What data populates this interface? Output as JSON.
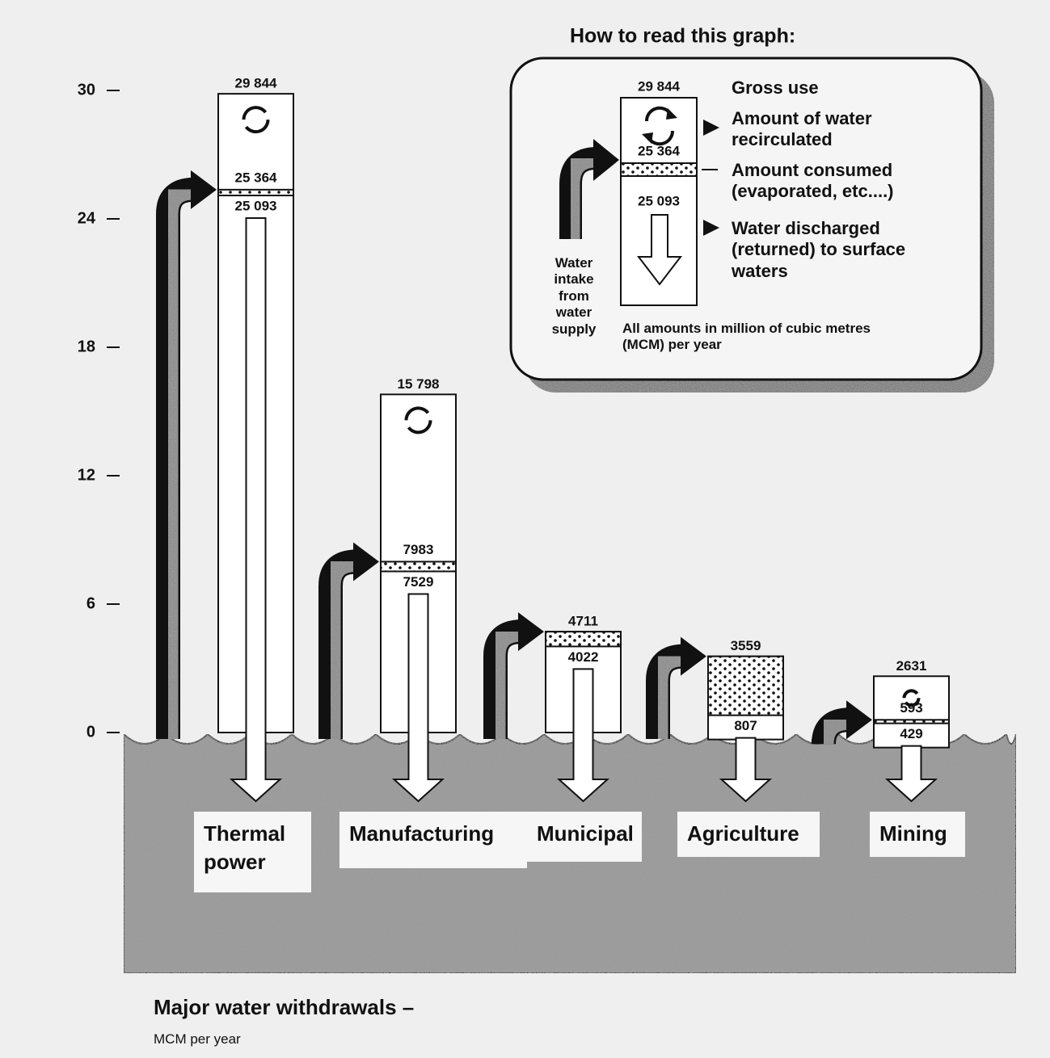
{
  "chart_data": {
    "type": "water-flow",
    "title": "Major water withdrawals –",
    "subtitle": "MCM per year",
    "categories": [
      "Thermal power",
      "Manufacturing",
      "Municipal",
      "Agriculture",
      "Mining"
    ],
    "series": [
      {
        "name": "Gross use",
        "color": "#ffffff",
        "values": [
          29.844,
          15.798,
          4.711,
          3.559,
          2.631
        ],
        "value_labels": [
          "29 844",
          "15 798",
          "4711",
          "3559",
          "2631"
        ]
      },
      {
        "name": "Water intake from water supply",
        "color": "#888888",
        "values": [
          25.364,
          7.983,
          null,
          null,
          0.593
        ],
        "value_labels": [
          "25 364",
          "7983",
          null,
          null,
          "593"
        ]
      },
      {
        "name": "Water discharged (returned) to surface waters",
        "color": "#ffffff",
        "values": [
          25.093,
          7.529,
          4.022,
          0.807,
          0.429
        ],
        "value_labels": [
          "25 093",
          "7529",
          "4022",
          "807",
          "429"
        ]
      }
    ],
    "ylim": [
      0,
      30
    ],
    "yticks": [
      0,
      6,
      12,
      18,
      24,
      30
    ],
    "legend": {
      "title": "How to read this graph:",
      "recirculated": "Amount of water recirculated",
      "consumed": "Amount consumed (evaporated, etc....)",
      "note": "All amounts in million of cubic metres (MCM) per year"
    }
  }
}
